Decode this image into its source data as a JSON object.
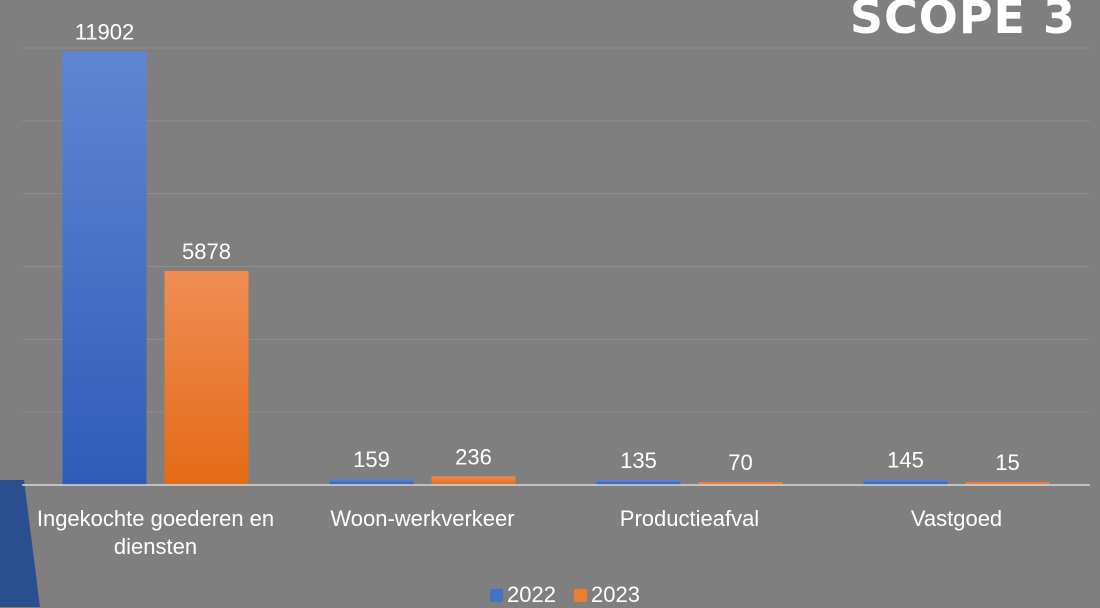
{
  "slide": {
    "heading": "SCOPE 3"
  },
  "colors": {
    "series_2022": "#4472c4",
    "series_2023": "#ed7d31",
    "background": "#7f7f7f",
    "gridline": "#8e8e8e",
    "text": "#ffffff"
  },
  "chart_data": {
    "type": "bar",
    "categories": [
      [
        "Ingekochte goederen en",
        "diensten"
      ],
      [
        "Woon-werkverkeer"
      ],
      [
        "Productieafval"
      ],
      [
        "Vastgoed"
      ]
    ],
    "series": [
      {
        "name": "2022",
        "values": [
          11902,
          159,
          135,
          145
        ],
        "labels": [
          "11902",
          "159",
          "135",
          "145"
        ]
      },
      {
        "name": "2023",
        "values": [
          5878,
          236,
          70,
          15
        ],
        "labels": [
          "5878",
          "236",
          "70",
          "15"
        ]
      }
    ],
    "ylim": [
      0,
      12000
    ],
    "gridlines": true,
    "legend": "bottom"
  }
}
